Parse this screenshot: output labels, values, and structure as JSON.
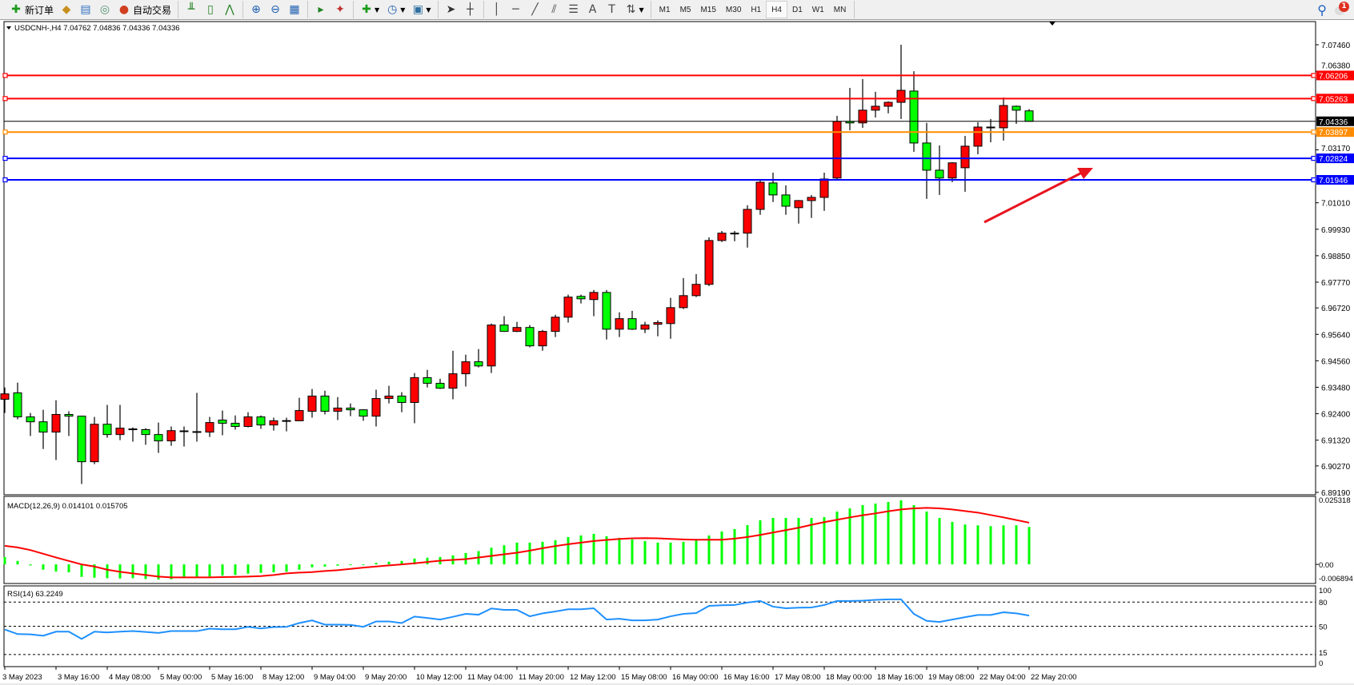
{
  "toolbar": {
    "groups": [
      [
        {
          "name": "new-order",
          "icon": "new-order-icon",
          "glyph": "✚",
          "color": "#1a9a1a",
          "label": "新订单"
        },
        {
          "name": "metaeditor",
          "icon": "metaeditor-icon",
          "glyph": "◆",
          "color": "#c89020"
        },
        {
          "name": "navigator",
          "icon": "navigator-icon",
          "glyph": "▤",
          "color": "#3070c0"
        },
        {
          "name": "signals",
          "icon": "signal-icon",
          "glyph": "◎",
          "color": "#509070"
        },
        {
          "name": "auto-trading",
          "icon": "auto-trading-icon",
          "glyph": "●",
          "color": "#d04020",
          "label": "自动交易"
        }
      ],
      [
        {
          "name": "bar-chart",
          "icon": "bar-chart-icon",
          "glyph": "╨",
          "color": "#208020"
        },
        {
          "name": "candlestick-chart",
          "icon": "candlestick-icon",
          "glyph": "▯",
          "color": "#208020"
        },
        {
          "name": "line-chart",
          "icon": "line-chart-icon",
          "glyph": "⋀",
          "color": "#208020"
        }
      ],
      [
        {
          "name": "zoom-in",
          "icon": "zoom-in-icon",
          "glyph": "⊕",
          "color": "#2060b0"
        },
        {
          "name": "zoom-out",
          "icon": "zoom-out-icon",
          "glyph": "⊖",
          "color": "#2060b0"
        },
        {
          "name": "tile-windows",
          "icon": "tile-windows-icon",
          "glyph": "▦",
          "color": "#2060b0"
        }
      ],
      [
        {
          "name": "chart-shift",
          "icon": "chart-shift-icon",
          "glyph": "▸",
          "color": "#208020"
        },
        {
          "name": "auto-scroll",
          "icon": "auto-scroll-icon",
          "glyph": "✦",
          "color": "#c03030"
        }
      ],
      [
        {
          "name": "indicators",
          "icon": "indicators-icon",
          "glyph": "✚",
          "color": "#1a9a1a",
          "dropdown": true
        },
        {
          "name": "periods",
          "icon": "clock-icon",
          "glyph": "◷",
          "color": "#2060b0",
          "dropdown": true
        },
        {
          "name": "templates",
          "icon": "templates-icon",
          "glyph": "▣",
          "color": "#3070a0",
          "dropdown": true
        }
      ],
      [
        {
          "name": "cursor",
          "icon": "cursor-icon",
          "glyph": "➤",
          "color": "#333333"
        },
        {
          "name": "crosshair",
          "icon": "crosshair-icon",
          "glyph": "┼",
          "color": "#333333"
        }
      ],
      [
        {
          "name": "vertical-line",
          "icon": "vertical-line-icon",
          "glyph": "│",
          "color": "#444444"
        },
        {
          "name": "horizontal-line",
          "icon": "horizontal-line-icon",
          "glyph": "─",
          "color": "#444444"
        },
        {
          "name": "trendline",
          "icon": "trendline-icon",
          "glyph": "╱",
          "color": "#444444"
        },
        {
          "name": "equidistant-channel",
          "icon": "channel-icon",
          "glyph": "⫽",
          "color": "#444444"
        },
        {
          "name": "fibonacci",
          "icon": "fibonacci-icon",
          "glyph": "☰",
          "color": "#444444"
        },
        {
          "name": "text",
          "icon": "text-icon",
          "glyph": "A",
          "color": "#444444"
        },
        {
          "name": "text-label",
          "icon": "text-label-icon",
          "glyph": "T",
          "color": "#444444"
        },
        {
          "name": "arrows",
          "icon": "arrows-icon",
          "glyph": "⇅",
          "color": "#444444",
          "dropdown": true
        }
      ]
    ],
    "timeframes": [
      "M1",
      "M5",
      "M15",
      "M30",
      "H1",
      "H4",
      "D1",
      "W1",
      "MN"
    ],
    "selected_timeframe": "H4",
    "notification_count": "1"
  },
  "chart": {
    "header": "USDCNH-,H4  7.04762 7.04836 7.04336 7.04336",
    "symbol": "USDCNH-",
    "timeframe": "H4",
    "colors": {
      "bull": "#ff0000",
      "bear": "#00ff00",
      "outline": "#000000",
      "macd": "#00ff00",
      "signal": "#ff0000",
      "rsi": "#1e90ff"
    },
    "price_ticks": [
      "7.07460",
      "7.06380",
      "7.03170",
      "7.01010",
      "6.99930",
      "6.98850",
      "6.97770",
      "6.96720",
      "6.95640",
      "6.94560",
      "6.93480",
      "6.92400",
      "6.91320",
      "6.90270",
      "6.89190"
    ],
    "bid": {
      "price": "7.04336",
      "color": "#000000"
    },
    "hlines": [
      {
        "price": "7.06206",
        "color": "#ff0000"
      },
      {
        "price": "7.05263",
        "color": "#ff0000"
      },
      {
        "price": "7.03897",
        "color": "#ff8c00"
      },
      {
        "price": "7.02824",
        "color": "#0000ff"
      },
      {
        "price": "7.01946",
        "color": "#0000ff"
      }
    ],
    "arrow_color": "#e8141e",
    "candles": [
      [
        6.9299,
        6.9347,
        6.9243,
        6.9321
      ],
      [
        6.9325,
        6.9367,
        6.9217,
        6.9227
      ],
      [
        6.9227,
        6.9243,
        6.9149,
        6.9207
      ],
      [
        6.9207,
        6.9256,
        6.9096,
        6.9165
      ],
      [
        6.9165,
        6.9295,
        6.9051,
        6.9237
      ],
      [
        6.9237,
        6.925,
        6.9149,
        6.923
      ],
      [
        6.923,
        6.9232,
        6.8953,
        6.9044
      ],
      [
        6.9044,
        6.9227,
        6.9034,
        6.9197
      ],
      [
        6.9197,
        6.9276,
        6.9142,
        6.9155
      ],
      [
        6.9155,
        6.9276,
        6.9132,
        6.9181
      ],
      [
        6.9178,
        6.9184,
        6.9126,
        6.9175
      ],
      [
        6.9175,
        6.9181,
        6.9113,
        6.9155
      ],
      [
        6.9155,
        6.9204,
        6.908,
        6.9129
      ],
      [
        6.9129,
        6.9188,
        6.9109,
        6.9171
      ],
      [
        6.917,
        6.9188,
        6.9106,
        6.9168
      ],
      [
        6.9167,
        6.9325,
        6.9126,
        6.9165
      ],
      [
        6.9165,
        6.9227,
        6.9145,
        6.9204
      ],
      [
        6.9214,
        6.9253,
        6.9152,
        6.9201
      ],
      [
        6.9201,
        6.9233,
        6.9175,
        6.9188
      ],
      [
        6.9188,
        6.9246,
        6.9184,
        6.9227
      ],
      [
        6.9227,
        6.9233,
        6.9178,
        6.9194
      ],
      [
        6.9194,
        6.9224,
        6.9171,
        6.9211
      ],
      [
        6.9212,
        6.9224,
        6.9168,
        6.9211
      ],
      [
        6.9211,
        6.9305,
        6.9211,
        6.9253
      ],
      [
        6.925,
        6.9341,
        6.9224,
        6.9312
      ],
      [
        6.9312,
        6.9334,
        6.9237,
        6.925
      ],
      [
        6.925,
        6.9308,
        6.9214,
        6.9263
      ],
      [
        6.9263,
        6.9282,
        6.923,
        6.9256
      ],
      [
        6.9256,
        6.9258,
        6.9211,
        6.923
      ],
      [
        6.923,
        6.9338,
        6.9188,
        6.9302
      ],
      [
        6.9302,
        6.9354,
        6.9282,
        6.9312
      ],
      [
        6.9312,
        6.9328,
        6.9246,
        6.9286
      ],
      [
        6.9286,
        6.9406,
        6.9201,
        6.9387
      ],
      [
        6.9387,
        6.9419,
        6.9347,
        6.9364
      ],
      [
        6.9364,
        6.9383,
        6.9341,
        6.9344
      ],
      [
        6.9344,
        6.9497,
        6.9299,
        6.9403
      ],
      [
        6.9403,
        6.9481,
        6.9351,
        6.9452
      ],
      [
        6.9452,
        6.9504,
        6.9429,
        6.9435
      ],
      [
        6.9435,
        6.9608,
        6.9406,
        6.9602
      ],
      [
        6.9602,
        6.9638,
        6.9574,
        6.9576
      ],
      [
        6.9576,
        6.9615,
        6.9573,
        6.9592
      ],
      [
        6.9592,
        6.9602,
        6.9511,
        6.9517
      ],
      [
        6.9517,
        6.9582,
        6.9497,
        6.9576
      ],
      [
        6.9576,
        6.9644,
        6.9553,
        6.9634
      ],
      [
        6.9634,
        6.9726,
        6.9612,
        6.9716
      ],
      [
        6.9719,
        6.9726,
        6.969,
        6.9709
      ],
      [
        6.9706,
        6.9745,
        6.9638,
        6.9735
      ],
      [
        6.9735,
        6.9745,
        6.9543,
        6.9585
      ],
      [
        6.9585,
        6.9654,
        6.9553,
        6.9628
      ],
      [
        6.9628,
        6.966,
        6.9582,
        6.9585
      ],
      [
        6.9585,
        6.9615,
        6.9569,
        6.9602
      ],
      [
        6.9605,
        6.9621,
        6.9556,
        6.9612
      ],
      [
        6.9608,
        6.9713,
        6.9546,
        6.9673
      ],
      [
        6.9673,
        6.9794,
        6.9667,
        6.9722
      ],
      [
        6.9722,
        6.981,
        6.9716,
        6.9768
      ],
      [
        6.9768,
        6.996,
        6.9761,
        6.9947
      ],
      [
        6.9947,
        6.9986,
        6.9941,
        6.9977
      ],
      [
        6.9976,
        6.9986,
        6.9944,
        6.9977
      ],
      [
        6.9977,
        7.0091,
        6.9918,
        7.0074
      ],
      [
        7.0074,
        7.0198,
        7.0052,
        7.0185
      ],
      [
        7.0182,
        7.0224,
        7.0104,
        7.0133
      ],
      [
        7.0133,
        7.0172,
        7.0052,
        7.0087
      ],
      [
        7.0081,
        7.0112,
        7.0016,
        7.011
      ],
      [
        7.011,
        7.0133,
        7.0039,
        7.0123
      ],
      [
        7.0123,
        7.0224,
        7.0068,
        7.0198
      ],
      [
        7.0202,
        7.0456,
        7.0192,
        7.0433
      ],
      [
        7.0433,
        7.057,
        7.0397,
        7.0427
      ],
      [
        7.0427,
        7.0606,
        7.0407,
        7.0479
      ],
      [
        7.0479,
        7.0554,
        7.0449,
        7.0495
      ],
      [
        7.0495,
        7.0515,
        7.0466,
        7.0511
      ],
      [
        7.0511,
        7.0746,
        7.0443,
        7.056
      ],
      [
        7.0557,
        7.0638,
        7.0309,
        7.0345
      ],
      [
        7.0345,
        7.0427,
        7.0117,
        7.0234
      ],
      [
        7.0234,
        7.0335,
        7.0133,
        7.0202
      ],
      [
        7.0202,
        7.0267,
        7.0185,
        7.0264
      ],
      [
        7.0244,
        7.0374,
        7.0146,
        7.0332
      ],
      [
        7.0332,
        7.043,
        7.0299,
        7.041
      ],
      [
        7.041,
        7.0443,
        7.0348,
        7.0407
      ],
      [
        7.0407,
        7.0531,
        7.0355,
        7.0498
      ],
      [
        7.0495,
        7.0498,
        7.0423,
        7.0479
      ],
      [
        7.04762,
        7.04836,
        7.04336,
        7.04336
      ]
    ],
    "time_labels": [
      "3 May 2023",
      "3 May 16:00",
      "4 May 08:00",
      "5 May 00:00",
      "5 May 16:00",
      "8 May 12:00",
      "9 May 04:00",
      "9 May 20:00",
      "10 May 12:00",
      "11 May 04:00",
      "11 May 20:00",
      "12 May 12:00",
      "15 May 08:00",
      "16 May 00:00",
      "16 May 16:00",
      "17 May 08:00",
      "18 May 00:00",
      "18 May 16:00",
      "19 May 08:00",
      "22 May 04:00",
      "22 May 20:00"
    ]
  },
  "macd": {
    "label": "MACD(12,26,9) 0.014101 0.015705",
    "axis_labels": [
      "0.025318",
      "0.00",
      "-0.006894"
    ],
    "range": [
      -0.006894,
      0.025318
    ],
    "main": [
      0.0028,
      0.0013,
      -0.0004,
      -0.002,
      -0.0027,
      -0.003,
      -0.0047,
      -0.005,
      -0.0052,
      -0.0053,
      -0.0052,
      -0.0055,
      -0.0057,
      -0.0056,
      -0.005,
      -0.0048,
      -0.0046,
      -0.0042,
      -0.004,
      -0.0035,
      -0.0032,
      -0.003,
      -0.0028,
      -0.002,
      -0.0011,
      -0.0008,
      -0.0005,
      -0.0003,
      -0.0002,
      0.0006,
      0.001,
      0.0013,
      0.0022,
      0.0025,
      0.0028,
      0.0034,
      0.0043,
      0.005,
      0.0063,
      0.0072,
      0.0082,
      0.0082,
      0.0085,
      0.0091,
      0.0103,
      0.0109,
      0.0115,
      0.0106,
      0.01,
      0.0094,
      0.0088,
      0.0082,
      0.0082,
      0.0085,
      0.0091,
      0.0109,
      0.0124,
      0.0133,
      0.0148,
      0.0166,
      0.0175,
      0.0175,
      0.0175,
      0.0175,
      0.0178,
      0.0199,
      0.0211,
      0.0223,
      0.0229,
      0.0235,
      0.0241,
      0.0223,
      0.0199,
      0.0175,
      0.016,
      0.015,
      0.0147,
      0.0144,
      0.0147,
      0.0147,
      0.0141
    ],
    "signal": [
      0.007,
      0.0064,
      0.0054,
      0.004,
      0.0026,
      0.0013,
      0.0,
      -0.0008,
      -0.002,
      -0.0028,
      -0.0034,
      -0.004,
      -0.0046,
      -0.0049,
      -0.0049,
      -0.0049,
      -0.0049,
      -0.0048,
      -0.0047,
      -0.0046,
      -0.0044,
      -0.004,
      -0.0034,
      -0.0031,
      -0.0029,
      -0.0025,
      -0.0022,
      -0.0017,
      -0.0012,
      -0.0008,
      -0.0004,
      0.0,
      0.0004,
      0.0009,
      0.0014,
      0.0017,
      0.002,
      0.0026,
      0.0032,
      0.0038,
      0.0044,
      0.0052,
      0.0061,
      0.0069,
      0.0076,
      0.0082,
      0.0088,
      0.0092,
      0.0096,
      0.0098,
      0.0099,
      0.0098,
      0.0096,
      0.0094,
      0.0093,
      0.0093,
      0.0093,
      0.0097,
      0.0103,
      0.0111,
      0.012,
      0.0129,
      0.0138,
      0.0149,
      0.0159,
      0.0168,
      0.0177,
      0.0185,
      0.0192,
      0.02,
      0.0207,
      0.0211,
      0.0213,
      0.0211,
      0.0207,
      0.0201,
      0.0195,
      0.0186,
      0.0177,
      0.0167,
      0.0157
    ]
  },
  "rsi": {
    "label": "RSI(14) 63.2249",
    "axis_labels": [
      "100",
      "80",
      "50",
      "15",
      "0"
    ],
    "levels": [
      80,
      50,
      15
    ],
    "values": [
      46,
      40.3,
      40,
      38.3,
      43.3,
      43.3,
      34.3,
      43.3,
      42.3,
      43.3,
      44,
      43,
      41.7,
      44,
      44,
      44,
      47,
      46.3,
      46.3,
      49.3,
      47.3,
      49,
      49.3,
      54,
      57.3,
      52,
      52,
      51.7,
      49.3,
      56,
      56,
      54,
      62,
      60.3,
      58.3,
      61.7,
      65.3,
      64.3,
      72,
      70.3,
      70.3,
      62.3,
      66,
      68.3,
      71,
      71,
      72.3,
      58.3,
      59.3,
      57.3,
      57.3,
      58.3,
      62.3,
      65.3,
      66.3,
      75.3,
      76,
      76.3,
      79.3,
      81.3,
      74.3,
      72.3,
      73,
      73.3,
      76.3,
      81.3,
      81.3,
      81.7,
      82.7,
      83.3,
      83.3,
      65.3,
      56.7,
      55.3,
      58.3,
      61.3,
      64,
      64,
      67.3,
      66,
      63.2249
    ]
  }
}
